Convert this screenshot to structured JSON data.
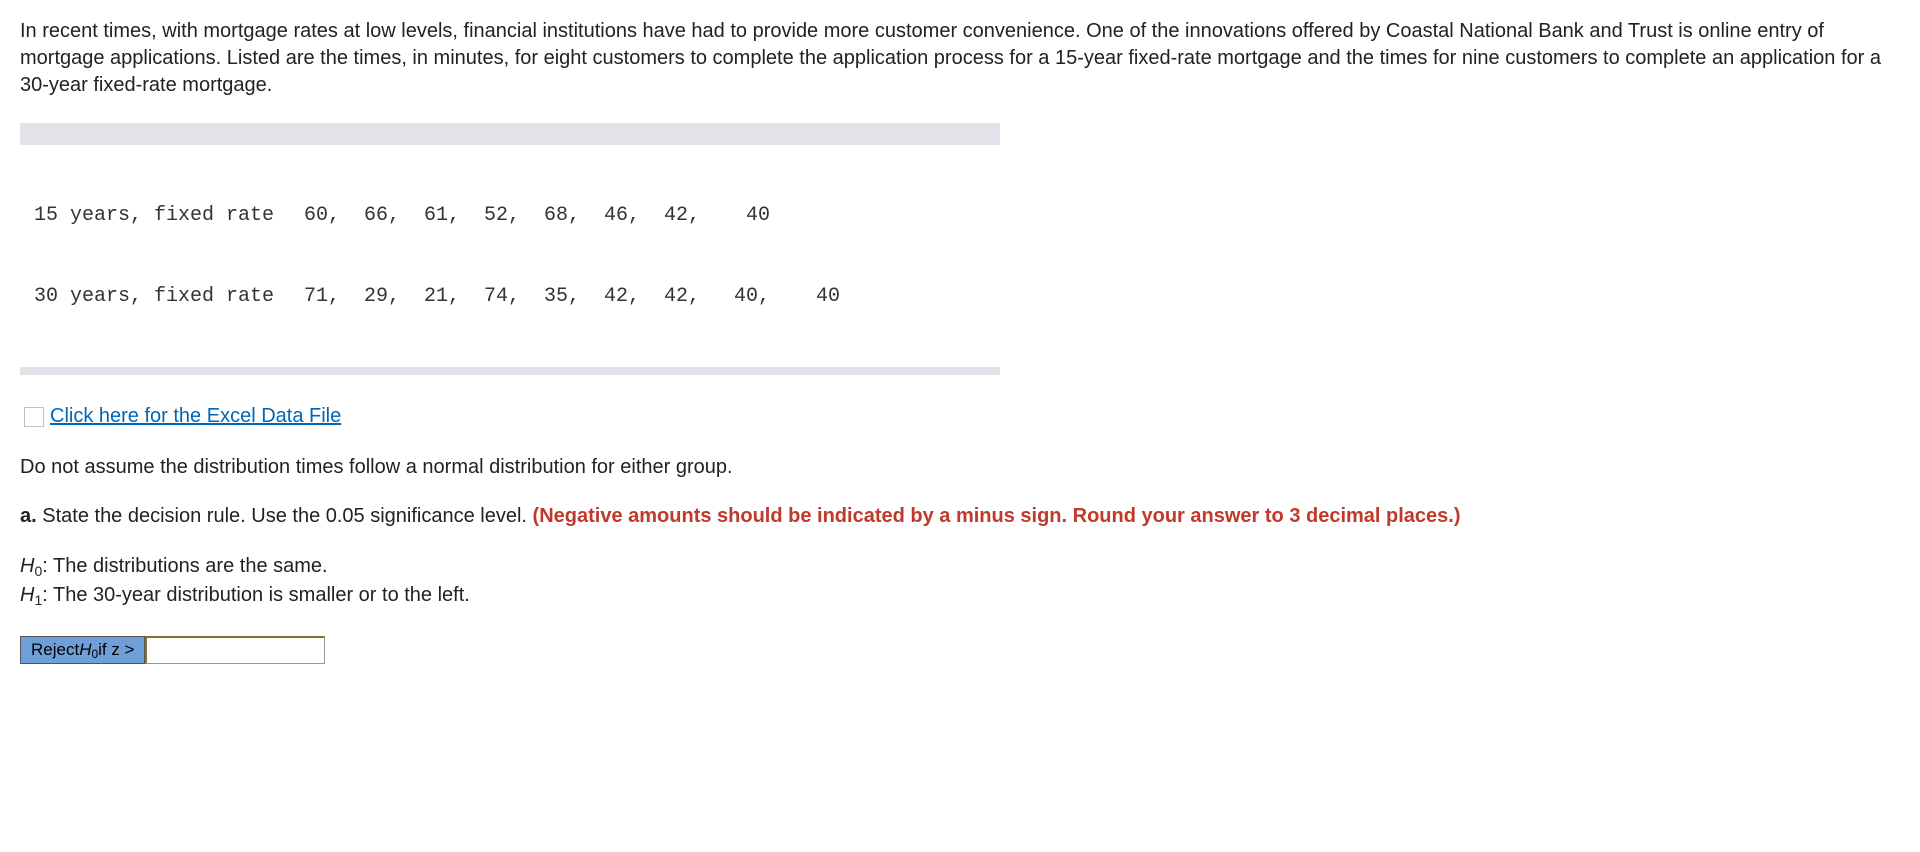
{
  "intro": "In recent times, with mortgage rates at low levels, financial institutions have had to provide more customer convenience. One of the innovations offered by Coastal National Bank and Trust is online entry of mortgage applications. Listed are the times, in minutes, for eight customers to complete the application process for a 15-year fixed-rate mortgage and the times for nine customers to complete an application for a 30-year fixed-rate mortgage.",
  "dataset": {
    "row1_label": "15 years, fixed rate",
    "row1_values": [
      "60,",
      "66,",
      "61,",
      "52,",
      "68,",
      "46,",
      "42,",
      "40",
      ""
    ],
    "row2_label": "30 years, fixed rate",
    "row2_values": [
      "71,",
      "29,",
      "21,",
      "74,",
      "35,",
      "42,",
      "42,",
      "40,",
      "40"
    ]
  },
  "excel_link_text": "Click here for the Excel Data File",
  "assumption_note": "Do not assume the distribution times follow a normal distribution for either group.",
  "part_a_prefix": "a. ",
  "part_a_black": "State the decision rule. Use the 0.05 significance level. ",
  "part_a_red": "(Negative amounts should be indicated by a minus sign. Round your answer to 3 decimal places.)",
  "hypotheses": {
    "h0_label": "H",
    "h0_sub": "0",
    "h0_text": ": The distributions are the same.",
    "h1_label": "H",
    "h1_sub": "1",
    "h1_text": ": The 30-year distribution is smaller or to the left."
  },
  "answer": {
    "prefix": "Reject ",
    "h_label": "H",
    "h_sub": "0",
    "suffix": " if z >",
    "value": ""
  }
}
